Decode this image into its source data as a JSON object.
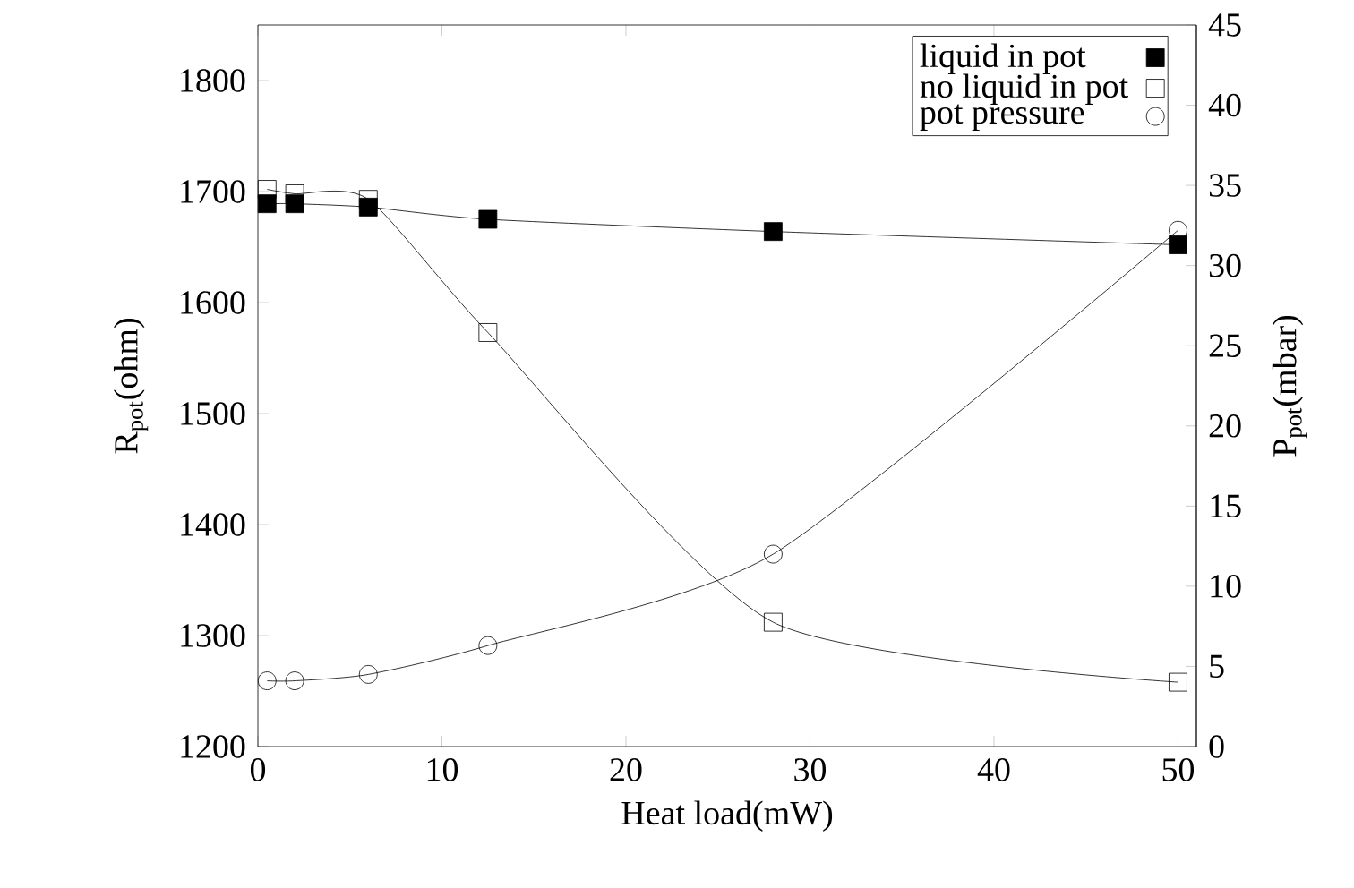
{
  "chart_data": {
    "type": "line",
    "xlabel": "Heat load(mW)",
    "ylabel": "R$_{pot}$(ohm)",
    "y2label": "P$_{pot}$(mbar)",
    "x": [
      0.5,
      2,
      6,
      12.5,
      28,
      50
    ],
    "series": [
      {
        "name": "liquid in pot",
        "color": "#000000",
        "marker": "square",
        "values": [
          1689,
          1689,
          1686,
          1675,
          1664,
          1652
        ]
      },
      {
        "name": "no liquid in pot",
        "color": "#000000",
        "marker": "square",
        "values": [
          1702,
          1698,
          1693,
          1573,
          1312,
          1258
        ]
      },
      {
        "name": "pot pressure",
        "color": "#000000",
        "marker": "circle",
        "axis": "y2",
        "values": [
          4.1,
          4.1,
          4.5,
          6.3,
          12.0,
          32.2
        ]
      }
    ],
    "xlim": [
      0,
      51
    ],
    "xticks": [
      0,
      10,
      20,
      30,
      40,
      50
    ],
    "ylim": [
      1200,
      1850
    ],
    "yticks": [
      1200,
      1300,
      1400,
      1500,
      1600,
      1700,
      1800
    ],
    "y2lim": [
      0,
      45
    ],
    "y2ticks": [
      0,
      5,
      10,
      15,
      20,
      25,
      30,
      35,
      40,
      45
    ],
    "legend": "top right",
    "grid": false,
    "line_style": "solid"
  }
}
